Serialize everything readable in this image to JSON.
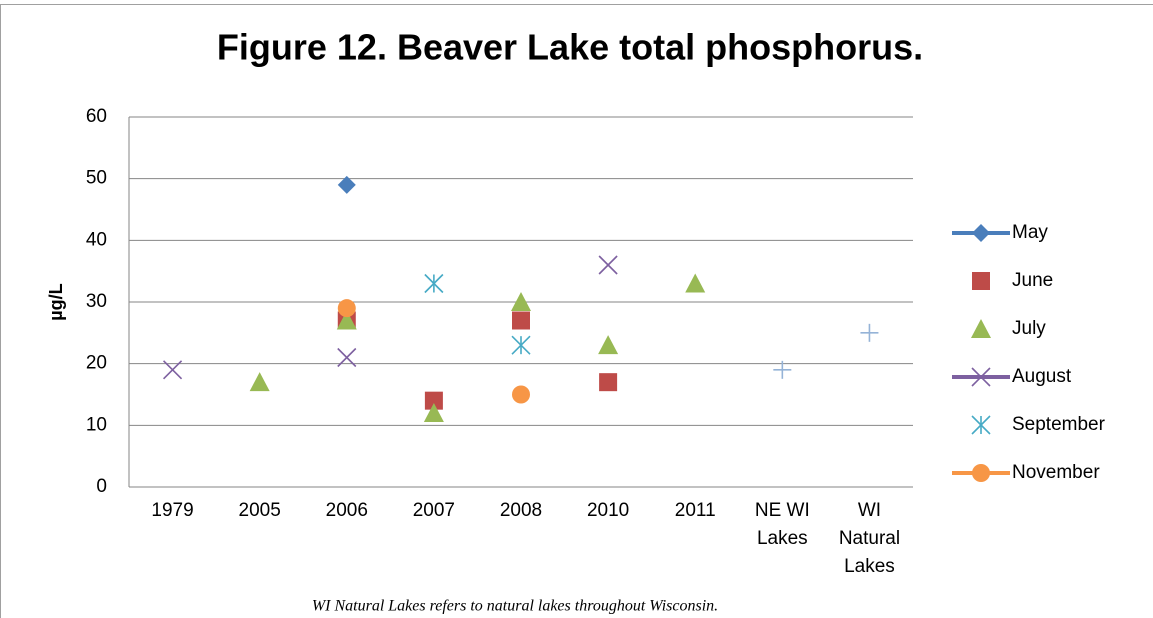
{
  "chart_data": {
    "type": "scatter",
    "title": "Figure 12. Beaver Lake total phosphorus.",
    "y_label": "µg/L",
    "footnote": "WI Natural Lakes refers to natural lakes throughout Wisconsin.",
    "categories": [
      "1979",
      "2005",
      "2006",
      "2007",
      "2008",
      "2010",
      "2011",
      "NE WI Lakes",
      "WI Natural Lakes"
    ],
    "ylim": [
      0,
      60
    ],
    "yticks": [
      0,
      10,
      20,
      30,
      40,
      50,
      60
    ],
    "grid": true,
    "legend": "right",
    "series": [
      {
        "name": "May",
        "color": "#4a7ebb",
        "marker": "diamond",
        "legend_line": true,
        "values": [
          null,
          null,
          49,
          null,
          null,
          null,
          null,
          null,
          null
        ]
      },
      {
        "name": "June",
        "color": "#be4b48",
        "marker": "square",
        "values": [
          null,
          null,
          27,
          14,
          27,
          17,
          null,
          null,
          null
        ]
      },
      {
        "name": "July",
        "color": "#98b954",
        "marker": "triangle",
        "values": [
          null,
          17,
          27,
          12,
          30,
          23,
          33,
          null,
          null
        ]
      },
      {
        "name": "August",
        "color": "#7d60a0",
        "marker": "x",
        "legend_line": true,
        "values": [
          19,
          null,
          21,
          null,
          null,
          36,
          null,
          null,
          null
        ]
      },
      {
        "name": "September",
        "color": "#46aac5",
        "marker": "star",
        "values": [
          null,
          null,
          null,
          33,
          23,
          null,
          null,
          null,
          null
        ]
      },
      {
        "name": "November",
        "color": "#f79646",
        "marker": "circle",
        "legend_line": true,
        "values": [
          null,
          null,
          29,
          null,
          15,
          null,
          null,
          null,
          null
        ]
      },
      {
        "color": "#95b3d7",
        "marker": "plus",
        "values": [
          null,
          null,
          null,
          null,
          null,
          null,
          null,
          19,
          25
        ]
      }
    ]
  }
}
